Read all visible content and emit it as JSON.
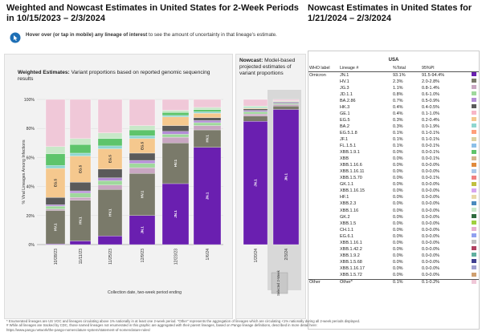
{
  "left_title": "Weighted and Nowcast Estimates in United States for 2-Week Periods in 10/15/2023 – 2/3/2024",
  "right_title": "Nowcast Estimates in United States for 1/21/2024 – 2/3/2024",
  "hover_note_bold": "Hover over (or tap in mobile) any lineage of interest",
  "hover_note_rest": " to see the amount of uncertainty in that lineage's estimate.",
  "weighted_title_bold": "Weighted Estimates:",
  "weighted_title_rest": " Variant proportions based on reported genomic sequencing results",
  "nowcast_title_bold": "Nowcast:",
  "nowcast_title_rest": " Model-based projected estimates of variant proportions",
  "selected_label": "Selected 2-Week",
  "colors": {
    "JN.1": "#6a1fb0",
    "HV.1": "#7a7a6a",
    "JG.3": "#c9a7c2",
    "JD.1.1": "#9fd89c",
    "BA.2.86": "#b38cd6",
    "HK.3": "#5a5a5a",
    "GE.1": "#f7b6c7",
    "EG.5": "#f5c88e",
    "BA.2": "#8fd6d0",
    "EG.5.1.8": "#ff9f7a",
    "JF.1": "#dcd2a0",
    "FL.1.5.1": "#8cc0e8",
    "XBB.1.9.1": "#5ec46b",
    "XBB": "#d2b48c",
    "XBB.1.16.6": "#e08a3c",
    "XBB.1.16.11": "#a9c7e8",
    "XBB.1.5.70": "#f08080",
    "GK.1.1": "#c0c040",
    "XBB.1.16.15": "#d8a5f0",
    "HF.1": "#e8d8a8",
    "XBB.2.3": "#4b8bbe",
    "XBB.1.16": "#c8e8c8",
    "GK.2": "#2e6b3e",
    "XBB.1.5": "#a0d040",
    "CH.1.1": "#e8b0d0",
    "EG.6.1": "#90a0f0",
    "XBB.1.16.1": "#c0c0c0",
    "XBB.1.42.2": "#b04060",
    "XBB.1.9.2": "#60b0a0",
    "XBB.1.5.68": "#404090",
    "XBB.1.16.17": "#a0a0d0",
    "XBB.1.5.72": "#d0a070",
    "Other": "#f0c8d8"
  },
  "chart_data": {
    "type": "bar",
    "stacked": true,
    "title": "Weighted and Nowcast Estimates in United States for 2-Week Periods in 10/15/2023 – 2/3/2024",
    "xlabel": "Collection date, two-week period ending",
    "ylabel": "% Viral Lineages Among Infections",
    "ylim": [
      0,
      100
    ],
    "yticks": [
      "0%",
      "20%",
      "40%",
      "60%",
      "80%",
      "100%"
    ],
    "categories": [
      "10/28/23",
      "11/11/23",
      "11/25/23",
      "12/9/23",
      "12/23/23",
      "1/6/24",
      "1/20/24",
      "2/3/24"
    ],
    "weighted_categories": [
      "10/28/23",
      "11/11/23",
      "11/25/23",
      "12/9/23",
      "12/23/23",
      "1/6/24"
    ],
    "nowcast_categories": [
      "1/20/24",
      "2/3/24"
    ],
    "series": [
      {
        "name": "JN.1",
        "values": [
          0.5,
          2.5,
          6,
          20,
          42,
          67,
          85,
          93.1
        ]
      },
      {
        "name": "HV.1",
        "values": [
          23,
          28,
          32,
          29,
          28,
          12,
          3.5,
          2.3
        ]
      },
      {
        "name": "JG.3",
        "values": [
          1,
          2,
          3,
          4,
          4,
          3,
          1.5,
          1.1
        ]
      },
      {
        "name": "JD.1.1",
        "values": [
          2,
          3,
          3,
          3,
          2,
          2,
          1.5,
          0.8
        ]
      },
      {
        "name": "BA.2.86",
        "values": [
          1,
          1.5,
          2,
          2,
          2,
          1.5,
          1,
          0.7
        ]
      },
      {
        "name": "HK.3",
        "values": [
          5,
          6,
          6,
          5,
          4,
          2,
          1,
          0.4
        ]
      },
      {
        "name": "EG.5",
        "values": [
          20,
          18,
          14,
          10,
          6,
          3,
          0.5,
          0.3
        ]
      },
      {
        "name": "BA.2",
        "values": [
          2,
          2,
          2,
          2,
          1,
          1,
          0.5,
          0.3
        ]
      },
      {
        "name": "XBB.1.9.1",
        "values": [
          8,
          6,
          5,
          4,
          2,
          1.5,
          0.5,
          0.0
        ]
      },
      {
        "name": "XBB.1.16",
        "values": [
          5,
          4,
          4,
          3,
          1.5,
          1.5,
          0.5,
          0.0
        ]
      },
      {
        "name": "Other",
        "values": [
          32.5,
          27,
          23,
          18,
          7.5,
          5.5,
          4.5,
          1.0
        ]
      }
    ],
    "bar_labels": [
      {
        "series": "HV.1",
        "labels": [
          "HV.1",
          "HV.1",
          "HV.1",
          "HV.1",
          "HV.1",
          "HV.1",
          "",
          ""
        ]
      },
      {
        "series": "EG.5",
        "labels": [
          "EG.5",
          "EG.5",
          "EG.5",
          "EG.5",
          "",
          "",
          "",
          ""
        ]
      },
      {
        "series": "JN.1",
        "labels": [
          "",
          "",
          "",
          "JN.1",
          "JN.1",
          "JN.1",
          "JN.1",
          "JN.1"
        ]
      }
    ]
  },
  "table": {
    "region": "USA",
    "headers": [
      "WHO label",
      "Lineage #",
      "%Total",
      "95%PI"
    ],
    "rows": [
      {
        "who": "Omicron",
        "lineage": "JN.1",
        "total": "93.1%",
        "pi": "91.5-94.4%"
      },
      {
        "who": "",
        "lineage": "HV.1",
        "total": "2.3%",
        "pi": "2.0-2.8%"
      },
      {
        "who": "",
        "lineage": "JG.3",
        "total": "1.1%",
        "pi": "0.8-1.4%"
      },
      {
        "who": "",
        "lineage": "JD.1.1",
        "total": "0.8%",
        "pi": "0.6-1.0%"
      },
      {
        "who": "",
        "lineage": "BA.2.86",
        "total": "0.7%",
        "pi": "0.5-0.9%"
      },
      {
        "who": "",
        "lineage": "HK.3",
        "total": "0.4%",
        "pi": "0.4-0.5%"
      },
      {
        "who": "",
        "lineage": "GE.1",
        "total": "0.4%",
        "pi": "0.1-1.0%"
      },
      {
        "who": "",
        "lineage": "EG.5",
        "total": "0.3%",
        "pi": "0.2-0.4%"
      },
      {
        "who": "",
        "lineage": "BA.2",
        "total": "0.3%",
        "pi": "0.0-1.9%"
      },
      {
        "who": "",
        "lineage": "EG.5.1.8",
        "total": "0.1%",
        "pi": "0.1-0.1%"
      },
      {
        "who": "",
        "lineage": "JF.1",
        "total": "0.1%",
        "pi": "0.1-0.1%"
      },
      {
        "who": "",
        "lineage": "FL.1.5.1",
        "total": "0.1%",
        "pi": "0.0-0.1%"
      },
      {
        "who": "",
        "lineage": "XBB.1.9.1",
        "total": "0.0%",
        "pi": "0.0-0.1%"
      },
      {
        "who": "",
        "lineage": "XBB",
        "total": "0.0%",
        "pi": "0.0-0.1%"
      },
      {
        "who": "",
        "lineage": "XBB.1.16.6",
        "total": "0.0%",
        "pi": "0.0-0.0%"
      },
      {
        "who": "",
        "lineage": "XBB.1.16.11",
        "total": "0.0%",
        "pi": "0.0-0.0%"
      },
      {
        "who": "",
        "lineage": "XBB.1.5.70",
        "total": "0.0%",
        "pi": "0.0-0.1%"
      },
      {
        "who": "",
        "lineage": "GK.1.1",
        "total": "0.0%",
        "pi": "0.0-0.0%"
      },
      {
        "who": "",
        "lineage": "XBB.1.16.15",
        "total": "0.0%",
        "pi": "0.0-0.0%"
      },
      {
        "who": "",
        "lineage": "HF.1",
        "total": "0.0%",
        "pi": "0.0-0.0%"
      },
      {
        "who": "",
        "lineage": "XBB.2.3",
        "total": "0.0%",
        "pi": "0.0-0.0%"
      },
      {
        "who": "",
        "lineage": "XBB.1.16",
        "total": "0.0%",
        "pi": "0.0-0.0%"
      },
      {
        "who": "",
        "lineage": "GK.2",
        "total": "0.0%",
        "pi": "0.0-0.0%"
      },
      {
        "who": "",
        "lineage": "XBB.1.5",
        "total": "0.0%",
        "pi": "0.0-0.0%"
      },
      {
        "who": "",
        "lineage": "CH.1.1",
        "total": "0.0%",
        "pi": "0.0-0.0%"
      },
      {
        "who": "",
        "lineage": "EG.6.1",
        "total": "0.0%",
        "pi": "0.0-0.0%"
      },
      {
        "who": "",
        "lineage": "XBB.1.16.1",
        "total": "0.0%",
        "pi": "0.0-0.0%"
      },
      {
        "who": "",
        "lineage": "XBB.1.42.2",
        "total": "0.0%",
        "pi": "0.0-0.0%"
      },
      {
        "who": "",
        "lineage": "XBB.1.9.2",
        "total": "0.0%",
        "pi": "0.0-0.0%"
      },
      {
        "who": "",
        "lineage": "XBB.1.5.68",
        "total": "0.0%",
        "pi": "0.0-0.0%"
      },
      {
        "who": "",
        "lineage": "XBB.1.16.17",
        "total": "0.0%",
        "pi": "0.0-0.0%"
      },
      {
        "who": "",
        "lineage": "XBB.1.5.72",
        "total": "0.0%",
        "pi": "0.0-0.0%"
      },
      {
        "who": "Other",
        "lineage": "Other*",
        "total": "0.1%",
        "pi": "0.1-0.2%"
      }
    ]
  },
  "footnotes": [
    "*   Enumerated lineages are US VOC and lineages circulating above 1% nationally in at least one 2-week period. \"Other\" represents the aggregation of lineages which are circulating <1% nationally during all 2-week periods displayed.",
    "#   While all lineages are tracked by CDC, those named lineages not enumerated in this graphic are aggregated with their parent lineages, based on Pango lineage definitions, described in more detail here:",
    "https://www.pango.network/the-pango-nomenclature-system/statement-of-nomenclature-rules/"
  ]
}
